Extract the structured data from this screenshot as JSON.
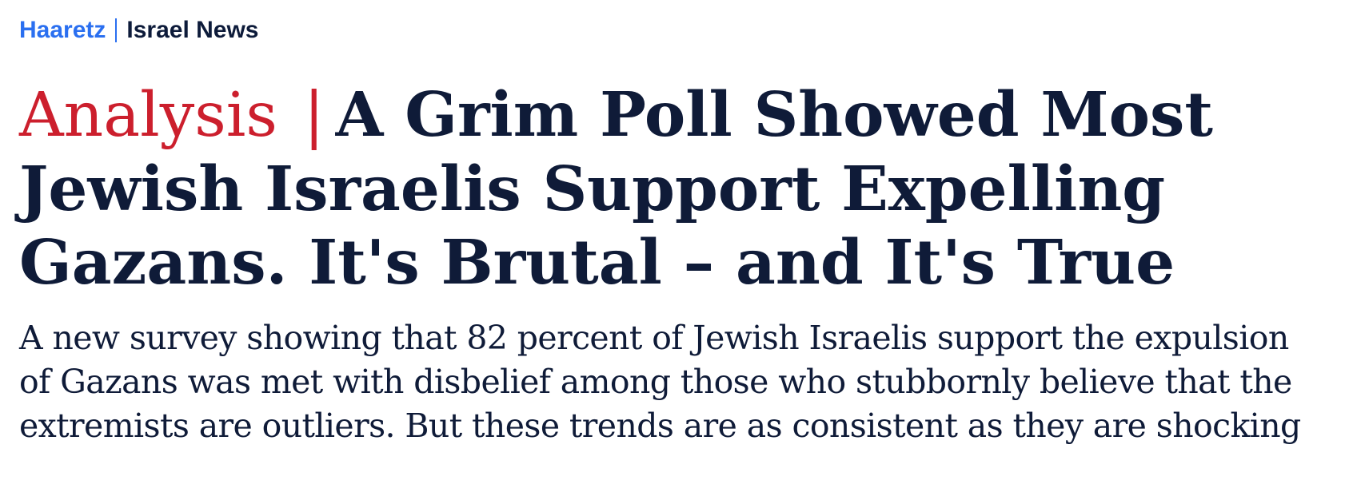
{
  "header": {
    "brand": "Haaretz",
    "section": "Israel News"
  },
  "article": {
    "label": "Analysis",
    "label_separator": "|",
    "headline": "A Grim Poll Showed Most Jewish Israelis Support Expelling Gazans. It's Brutal – and It's True",
    "dek": "A new survey showing that 82 percent of Jewish Israelis support the expulsion of Gazans was met with disbelief among those who stubbornly believe that the extremists are outliers. But these trends are as consistent as they are shocking"
  },
  "colors": {
    "brand": "#2a6ff0",
    "label": "#cc1f2d",
    "text": "#0f1b38"
  }
}
